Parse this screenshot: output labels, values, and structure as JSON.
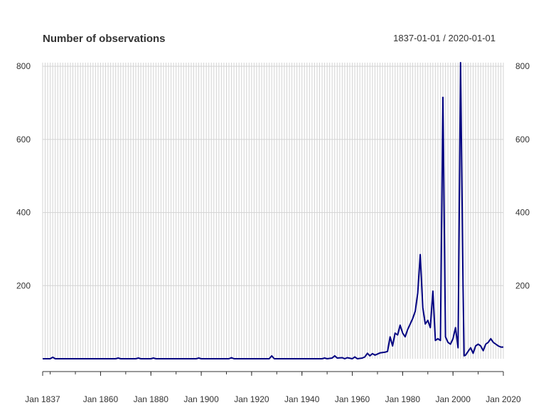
{
  "chart_data": {
    "type": "line",
    "title": "Number of observations",
    "date_range": "1837-01-01 / 2020-01-01",
    "xlabel": "",
    "ylabel": "",
    "x_ticks": [
      "Jan 1837",
      "Jan 1860",
      "Jan 1880",
      "Jan 1900",
      "Jan 1920",
      "Jan 1940",
      "Jan 1960",
      "Jan 1980",
      "Jan 2000",
      "Jan 2020"
    ],
    "y_ticks": [
      200,
      400,
      600,
      800
    ],
    "xlim": [
      "1837-01-01",
      "2020-01-01"
    ],
    "ylim": [
      0,
      810
    ],
    "grid": true,
    "legend": "none",
    "colors": {
      "line": "#000080",
      "grid": "#d3d3d3",
      "axis": "#333333"
    },
    "series": [
      {
        "values": [
          [
            "1837-01-01",
            0
          ],
          [
            "1840-01-01",
            0
          ],
          [
            "1841-01-01",
            4
          ],
          [
            "1842-01-01",
            0
          ],
          [
            "1866-01-01",
            0
          ],
          [
            "1867-01-01",
            2
          ],
          [
            "1868-01-01",
            0
          ],
          [
            "1874-01-01",
            0
          ],
          [
            "1875-01-01",
            2
          ],
          [
            "1876-01-01",
            0
          ],
          [
            "1880-01-01",
            0
          ],
          [
            "1881-01-01",
            2
          ],
          [
            "1882-01-01",
            0
          ],
          [
            "1898-01-01",
            0
          ],
          [
            "1899-01-01",
            2
          ],
          [
            "1900-01-01",
            0
          ],
          [
            "1911-01-01",
            0
          ],
          [
            "1912-01-01",
            3
          ],
          [
            "1913-01-01",
            0
          ],
          [
            "1927-01-01",
            0
          ],
          [
            "1928-01-01",
            8
          ],
          [
            "1929-01-01",
            0
          ],
          [
            "1948-01-01",
            0
          ],
          [
            "1949-01-01",
            2
          ],
          [
            "1950-01-01",
            0
          ],
          [
            "1952-01-01",
            2
          ],
          [
            "1953-01-01",
            8
          ],
          [
            "1954-01-01",
            2
          ],
          [
            "1956-01-01",
            3
          ],
          [
            "1957-01-01",
            0
          ],
          [
            "1958-01-01",
            3
          ],
          [
            "1960-01-01",
            0
          ],
          [
            "1961-01-01",
            5
          ],
          [
            "1962-01-01",
            0
          ],
          [
            "1964-01-01",
            2
          ],
          [
            "1965-01-01",
            5
          ],
          [
            "1966-01-01",
            15
          ],
          [
            "1967-01-01",
            8
          ],
          [
            "1968-01-01",
            14
          ],
          [
            "1969-01-01",
            10
          ],
          [
            "1971-01-01",
            16
          ],
          [
            "1973-01-01",
            18
          ],
          [
            "1974-01-01",
            20
          ],
          [
            "1975-01-01",
            60
          ],
          [
            "1976-01-01",
            35
          ],
          [
            "1977-01-01",
            70
          ],
          [
            "1978-01-01",
            65
          ],
          [
            "1979-01-01",
            92
          ],
          [
            "1980-01-01",
            70
          ],
          [
            "1981-01-01",
            60
          ],
          [
            "1982-01-01",
            80
          ],
          [
            "1983-01-01",
            95
          ],
          [
            "1984-01-01",
            110
          ],
          [
            "1985-01-01",
            130
          ],
          [
            "1986-01-01",
            180
          ],
          [
            "1987-01-01",
            285
          ],
          [
            "1988-01-01",
            140
          ],
          [
            "1989-01-01",
            95
          ],
          [
            "1990-01-01",
            105
          ],
          [
            "1991-01-01",
            85
          ],
          [
            "1992-01-01",
            185
          ],
          [
            "1993-01-01",
            50
          ],
          [
            "1994-01-01",
            55
          ],
          [
            "1995-01-01",
            50
          ],
          [
            "1996-01-01",
            715
          ],
          [
            "1997-01-01",
            60
          ],
          [
            "1998-01-01",
            45
          ],
          [
            "1999-01-01",
            40
          ],
          [
            "2000-01-01",
            55
          ],
          [
            "2001-01-01",
            85
          ],
          [
            "2002-01-01",
            30
          ],
          [
            "2003-01-01",
            810
          ],
          [
            "2004-01-01",
            200
          ],
          [
            "2004-06-01",
            8
          ],
          [
            "2005-01-01",
            10
          ],
          [
            "2006-01-01",
            20
          ],
          [
            "2007-01-01",
            30
          ],
          [
            "2008-01-01",
            15
          ],
          [
            "2009-01-01",
            35
          ],
          [
            "2010-01-01",
            40
          ],
          [
            "2011-01-01",
            35
          ],
          [
            "2012-01-01",
            22
          ],
          [
            "2013-01-01",
            40
          ],
          [
            "2014-01-01",
            45
          ],
          [
            "2015-01-01",
            55
          ],
          [
            "2016-01-01",
            45
          ],
          [
            "2017-01-01",
            40
          ],
          [
            "2018-01-01",
            35
          ],
          [
            "2019-01-01",
            32
          ],
          [
            "2020-01-01",
            32
          ]
        ]
      }
    ]
  }
}
